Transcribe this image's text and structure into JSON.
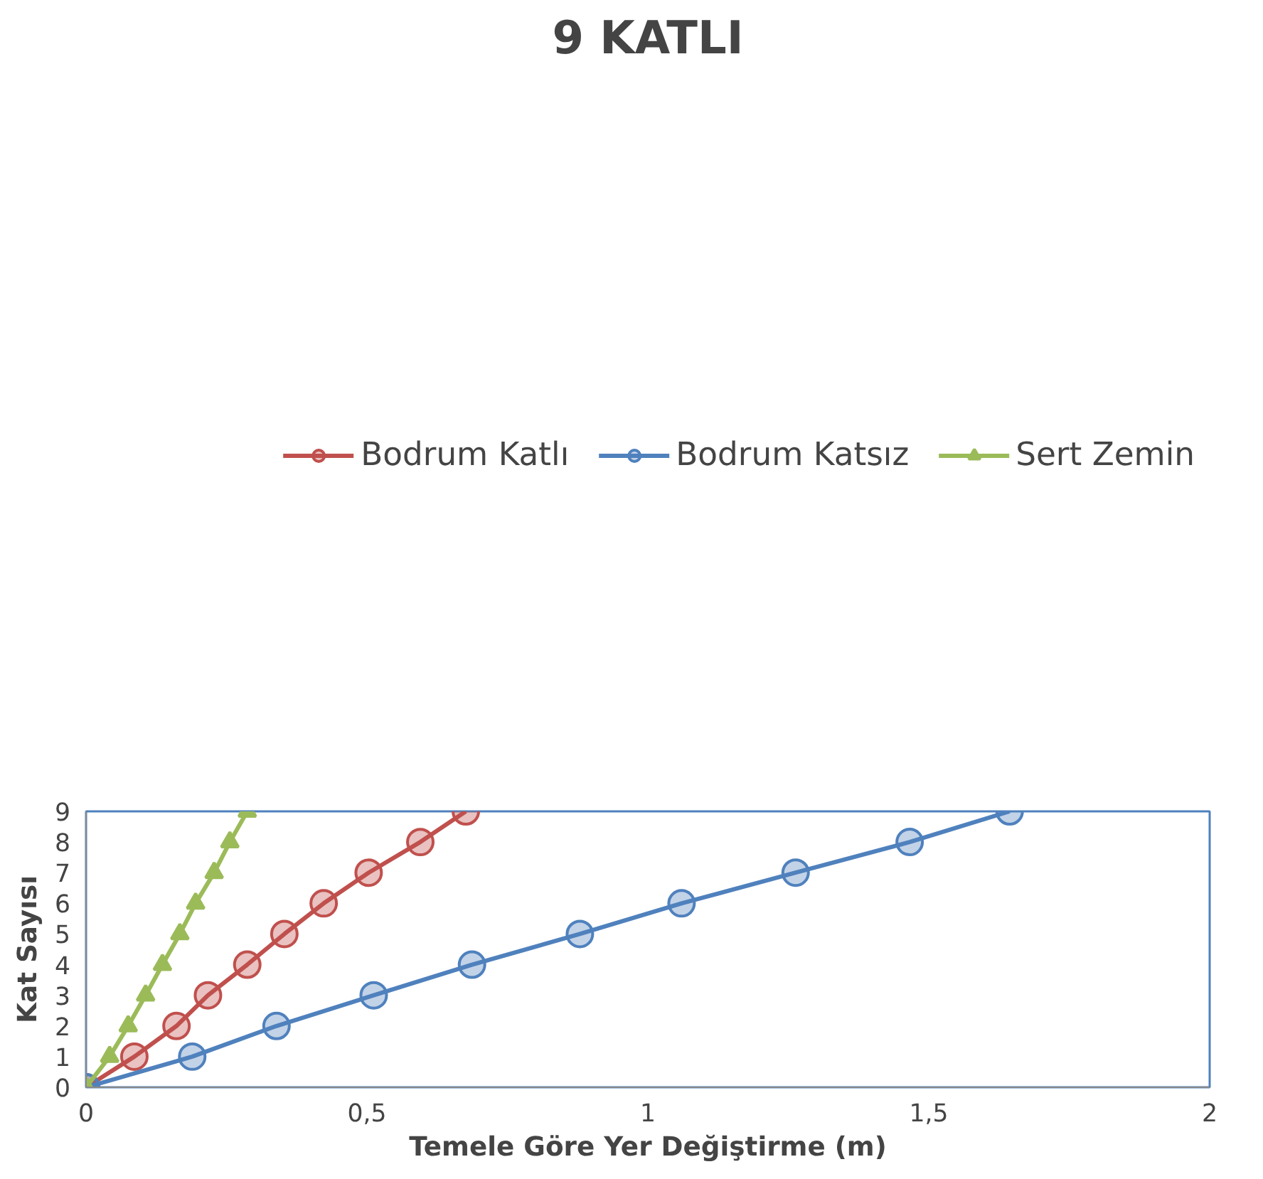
{
  "chart_data": {
    "type": "line",
    "title": "9 KATLI",
    "xlabel": "Temele Göre Yer Değiştirme (m)",
    "ylabel": "Kat Sayısı",
    "xlim": [
      0,
      2
    ],
    "xticks": [
      0,
      {
        "value": 0.5,
        "label": "0,5"
      },
      1,
      {
        "value": 1.5,
        "label": "1,5"
      },
      2
    ],
    "ylim": [
      0,
      9
    ],
    "yticks": [
      0,
      1,
      2,
      3,
      4,
      5,
      6,
      7,
      8,
      9
    ],
    "grid": false,
    "legend": "top",
    "series": [
      {
        "name": "Bodrum Katlı",
        "color": "#c0504d",
        "marker": "circle",
        "x": [
          0,
          0.086,
          0.161,
          0.217,
          0.287,
          0.353,
          0.423,
          0.503,
          0.595,
          0.676
        ],
        "values": [
          0,
          1,
          2,
          3,
          4,
          5,
          6,
          7,
          8,
          9
        ]
      },
      {
        "name": "Bodrum Katsız",
        "color": "#4f81bd",
        "marker": "circle",
        "x": [
          0,
          0.189,
          0.339,
          0.512,
          0.687,
          0.879,
          1.06,
          1.263,
          1.466,
          1.644
        ],
        "values": [
          0,
          1,
          2,
          3,
          4,
          5,
          6,
          7,
          8,
          9
        ]
      },
      {
        "name": "Sert Zemin",
        "color": "#9bbb59",
        "marker": "triangle",
        "x": [
          0,
          0.042,
          0.075,
          0.106,
          0.136,
          0.167,
          0.195,
          0.228,
          0.256,
          0.287
        ],
        "values": [
          0,
          1,
          2,
          3,
          4,
          5,
          6,
          7,
          8,
          9
        ]
      }
    ]
  }
}
